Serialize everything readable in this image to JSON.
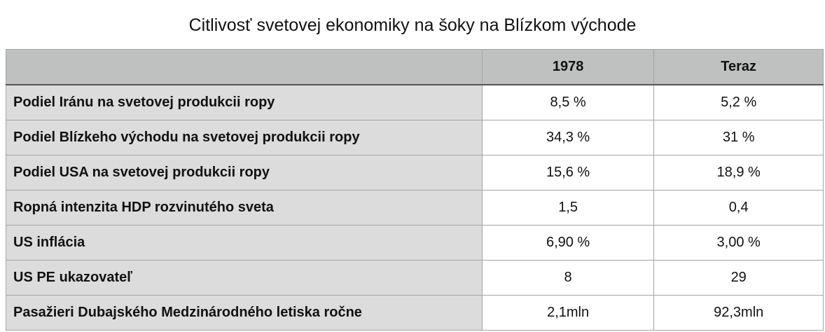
{
  "title": "Citlivosť svetovej ekonomiky na šoky na Blízkom východe",
  "columns": [
    "",
    "1978",
    "Teraz"
  ],
  "rows": [
    {
      "label": "Podiel Iránu na svetovej produkcii ropy",
      "v1978": "8,5 %",
      "now": "5,2 %"
    },
    {
      "label": "Podiel Blízkeho východu na svetovej produkcii ropy",
      "v1978": "34,3 %",
      "now": "31 %"
    },
    {
      "label": "Podiel USA na svetovej produkcii ropy",
      "v1978": "15,6 %",
      "now": "18,9 %"
    },
    {
      "label": "Ropná intenzita HDP rozvinutého sveta",
      "v1978": "1,5",
      "now": "0,4"
    },
    {
      "label": "US inflácia",
      "v1978": "6,90 %",
      "now": "3,00 %"
    },
    {
      "label": "US PE ukazovateľ",
      "v1978": "8",
      "now": "29"
    },
    {
      "label": "Pasažieri Dubajského Medzinárodného letiska ročne",
      "v1978": "2,1mln",
      "now": "92,3mln"
    }
  ]
}
